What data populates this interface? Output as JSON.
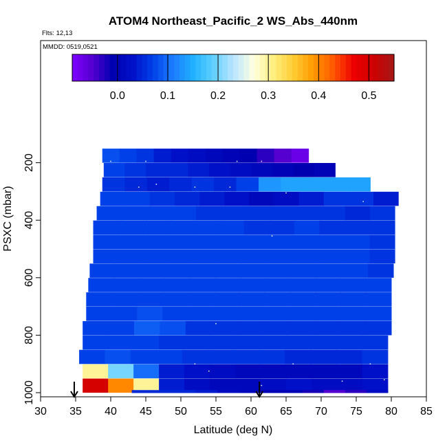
{
  "chart_data": {
    "type": "heatmap",
    "title": "ATOM4 Northeast_Pacific_2 WS_Abs_440nm",
    "flights_text": "Flts: 12,13",
    "dates_text": "MMDD: 0519,0521",
    "xlabel": "Latitude (deg N)",
    "ylabel": "PSXC (mbar)",
    "xlim": [
      30,
      85
    ],
    "ylim": [
      1000,
      0
    ],
    "x_ticks": [
      "30",
      "35",
      "40",
      "45",
      "50",
      "55",
      "60",
      "65",
      "70",
      "75",
      "80",
      "85"
    ],
    "y_ticks": [
      "200",
      "400",
      "600",
      "800",
      "1000"
    ],
    "colorbar": {
      "range": [
        -0.09,
        0.55
      ],
      "ticks": [
        "0.0",
        "0.1",
        "0.2",
        "0.3",
        "0.4",
        "0.5"
      ],
      "colors": [
        "#7f00ff",
        "#5500d0",
        "#0000b0",
        "#0010c8",
        "#0040e8",
        "#1c7cff",
        "#20b0ff",
        "#60d0ff",
        "#b8e4ff",
        "#ffffe0",
        "#ffef80",
        "#ffcc33",
        "#ff9900",
        "#ff5500",
        "#ee0000",
        "#cc0000",
        "#a51818"
      ]
    },
    "flight_markers_lat": [
      34.8,
      61.2
    ],
    "layers": [
      {
        "pressure": 175,
        "lat_start": 38.8,
        "lat_end": 68.2,
        "values": [
          0.08,
          0.07,
          0.06,
          0.04,
          0.03,
          0.02,
          0.01,
          0.0,
          -0.01,
          -0.03,
          -0.05,
          -0.07
        ]
      },
      {
        "pressure": 225,
        "lat_start": 39.0,
        "lat_end": 72.0,
        "values": [
          0.07,
          0.06,
          0.05,
          0.05,
          0.04,
          0.03,
          0.02,
          0.01,
          0.0,
          -0.01,
          0.0
        ]
      },
      {
        "pressure": 275,
        "lat_start": 38.8,
        "lat_end": 77.0,
        "values": [
          0.06,
          0.05,
          0.04,
          0.05,
          0.06,
          0.05,
          0.07,
          0.13,
          0.14,
          0.14,
          0.14,
          0.14
        ]
      },
      {
        "pressure": 325,
        "lat_start": 38.5,
        "lat_end": 81.0,
        "values": [
          0.07,
          0.07,
          0.06,
          0.05,
          0.04,
          0.03,
          0.01,
          0.02,
          0.04,
          0.06,
          0.06,
          0.04
        ]
      },
      {
        "pressure": 375,
        "lat_start": 38.0,
        "lat_end": 80.5,
        "values": [
          0.07,
          0.07,
          0.07,
          0.07,
          0.06,
          0.06,
          0.06,
          0.06,
          0.06,
          0.06,
          0.05,
          0.06
        ]
      },
      {
        "pressure": 425,
        "lat_start": 37.5,
        "lat_end": 80.5,
        "values": [
          0.07,
          0.07,
          0.07,
          0.07,
          0.07,
          0.07,
          0.06,
          0.06,
          0.07,
          0.06,
          0.06,
          0.06
        ]
      },
      {
        "pressure": 475,
        "lat_start": 37.5,
        "lat_end": 80.5,
        "values": [
          0.07,
          0.07,
          0.07,
          0.07,
          0.07,
          0.07,
          0.07,
          0.07,
          0.07,
          0.07,
          0.07,
          0.06
        ]
      },
      {
        "pressure": 525,
        "lat_start": 37.5,
        "lat_end": 80.5,
        "values": [
          0.07,
          0.07,
          0.07,
          0.07,
          0.07,
          0.07,
          0.07,
          0.07,
          0.07,
          0.07,
          0.07,
          0.06
        ]
      },
      {
        "pressure": 575,
        "lat_start": 37.0,
        "lat_end": 80.3,
        "values": [
          0.07,
          0.07,
          0.07,
          0.07,
          0.07,
          0.07,
          0.07,
          0.07,
          0.07,
          0.07,
          0.07,
          0.06
        ]
      },
      {
        "pressure": 625,
        "lat_start": 36.8,
        "lat_end": 80.0,
        "values": [
          0.07,
          0.07,
          0.07,
          0.07,
          0.07,
          0.07,
          0.07,
          0.07,
          0.07,
          0.07,
          0.07,
          0.07
        ]
      },
      {
        "pressure": 675,
        "lat_start": 36.5,
        "lat_end": 80.0,
        "values": [
          0.07,
          0.07,
          0.07,
          0.07,
          0.07,
          0.07,
          0.07,
          0.07,
          0.07,
          0.07,
          0.07,
          0.07
        ]
      },
      {
        "pressure": 725,
        "lat_start": 36.5,
        "lat_end": 80.0,
        "values": [
          0.07,
          0.07,
          0.08,
          0.07,
          0.07,
          0.07,
          0.07,
          0.07,
          0.07,
          0.07,
          0.07,
          0.07
        ]
      },
      {
        "pressure": 775,
        "lat_start": 36.0,
        "lat_end": 80.0,
        "values": [
          0.07,
          0.07,
          0.09,
          0.08,
          0.06,
          0.06,
          0.06,
          0.06,
          0.06,
          0.06,
          0.06,
          0.06
        ]
      },
      {
        "pressure": 825,
        "lat_start": 36.0,
        "lat_end": 79.5,
        "values": [
          0.07,
          0.07,
          0.07,
          0.06,
          0.06,
          0.06,
          0.06,
          0.06,
          0.06,
          0.06,
          0.06,
          0.06
        ]
      },
      {
        "pressure": 875,
        "lat_start": 35.5,
        "lat_end": 79.5,
        "values": [
          0.07,
          0.08,
          0.07,
          0.07,
          0.06,
          0.06,
          0.06,
          0.06,
          0.05,
          0.05,
          0.05,
          0.06
        ]
      },
      {
        "pressure": 925,
        "lat_start": 36.0,
        "lat_end": 79.5,
        "values": [
          0.3,
          0.2,
          0.1,
          0.04,
          0.03,
          0.02,
          0.01,
          0.01,
          0.01,
          0.01,
          0.01,
          0.03
        ]
      },
      {
        "pressure": 975,
        "lat_start": 36.0,
        "lat_end": 79.5,
        "values": [
          0.5,
          0.4,
          0.3,
          0.04,
          0.02,
          0.01,
          0.01,
          0.02,
          0.03,
          0.02,
          0.02,
          0.03
        ]
      },
      {
        "pressure": 1015,
        "lat_start": 43.0,
        "lat_end": 79.5,
        "values": [
          0.05,
          0.05,
          0.05,
          0.04,
          0.02,
          0.01,
          0.0,
          0.0,
          -0.02,
          -0.05,
          -0.03,
          0.02
        ]
      }
    ],
    "sample_points": [
      [
        40,
        195
      ],
      [
        45,
        195
      ],
      [
        58,
        195
      ],
      [
        61.5,
        195
      ],
      [
        68.5,
        195
      ],
      [
        44,
        285
      ],
      [
        46.5,
        275
      ],
      [
        52,
        285
      ],
      [
        57,
        285
      ],
      [
        65,
        305
      ],
      [
        76,
        335
      ],
      [
        63,
        455
      ],
      [
        55,
        760
      ],
      [
        52,
        900
      ],
      [
        54,
        925
      ],
      [
        66,
        900
      ],
      [
        77,
        900
      ],
      [
        73,
        960
      ],
      [
        79,
        955
      ],
      [
        61.5,
        975
      ]
    ]
  }
}
